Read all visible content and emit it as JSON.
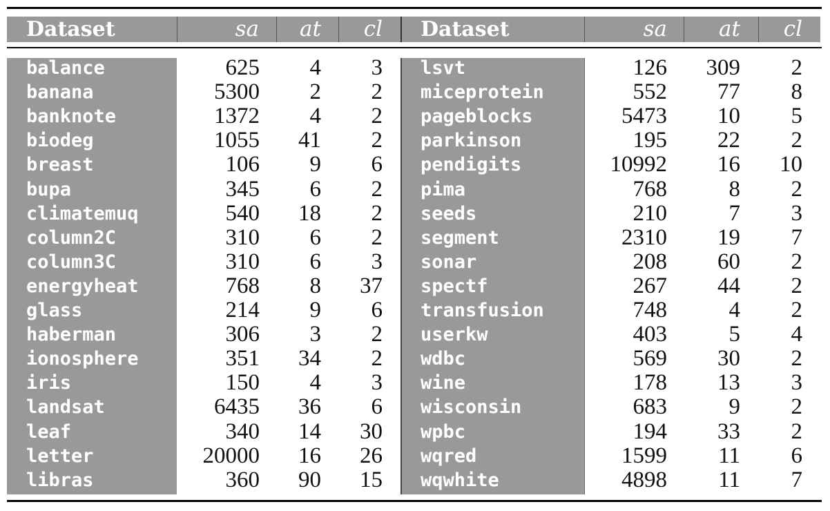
{
  "header": {
    "dataset": "Dataset",
    "sa": "sa",
    "at": "at",
    "cl": "cl"
  },
  "left_rows": [
    {
      "name": "balance",
      "sa": "625",
      "at": "4",
      "cl": "3"
    },
    {
      "name": "banana",
      "sa": "5300",
      "at": "2",
      "cl": "2"
    },
    {
      "name": "banknote",
      "sa": "1372",
      "at": "4",
      "cl": "2"
    },
    {
      "name": "biodeg",
      "sa": "1055",
      "at": "41",
      "cl": "2"
    },
    {
      "name": "breast",
      "sa": "106",
      "at": "9",
      "cl": "6"
    },
    {
      "name": "bupa",
      "sa": "345",
      "at": "6",
      "cl": "2"
    },
    {
      "name": "climatemuq",
      "sa": "540",
      "at": "18",
      "cl": "2"
    },
    {
      "name": "column2C",
      "sa": "310",
      "at": "6",
      "cl": "2"
    },
    {
      "name": "column3C",
      "sa": "310",
      "at": "6",
      "cl": "3"
    },
    {
      "name": "energyheat",
      "sa": "768",
      "at": "8",
      "cl": "37"
    },
    {
      "name": "glass",
      "sa": "214",
      "at": "9",
      "cl": "6"
    },
    {
      "name": "haberman",
      "sa": "306",
      "at": "3",
      "cl": "2"
    },
    {
      "name": "ionosphere",
      "sa": "351",
      "at": "34",
      "cl": "2"
    },
    {
      "name": "iris",
      "sa": "150",
      "at": "4",
      "cl": "3"
    },
    {
      "name": "landsat",
      "sa": "6435",
      "at": "36",
      "cl": "6"
    },
    {
      "name": "leaf",
      "sa": "340",
      "at": "14",
      "cl": "30"
    },
    {
      "name": "letter",
      "sa": "20000",
      "at": "16",
      "cl": "26"
    },
    {
      "name": "libras",
      "sa": "360",
      "at": "90",
      "cl": "15"
    }
  ],
  "right_rows": [
    {
      "name": "lsvt",
      "sa": "126",
      "at": "309",
      "cl": "2"
    },
    {
      "name": "miceprotein",
      "sa": "552",
      "at": "77",
      "cl": "8"
    },
    {
      "name": "pageblocks",
      "sa": "5473",
      "at": "10",
      "cl": "5"
    },
    {
      "name": "parkinson",
      "sa": "195",
      "at": "22",
      "cl": "2"
    },
    {
      "name": "pendigits",
      "sa": "10992",
      "at": "16",
      "cl": "10"
    },
    {
      "name": "pima",
      "sa": "768",
      "at": "8",
      "cl": "2"
    },
    {
      "name": "seeds",
      "sa": "210",
      "at": "7",
      "cl": "3"
    },
    {
      "name": "segment",
      "sa": "2310",
      "at": "19",
      "cl": "7"
    },
    {
      "name": "sonar",
      "sa": "208",
      "at": "60",
      "cl": "2"
    },
    {
      "name": "spectf",
      "sa": "267",
      "at": "44",
      "cl": "2"
    },
    {
      "name": "transfusion",
      "sa": "748",
      "at": "4",
      "cl": "2"
    },
    {
      "name": "userkw",
      "sa": "403",
      "at": "5",
      "cl": "4"
    },
    {
      "name": "wdbc",
      "sa": "569",
      "at": "30",
      "cl": "2"
    },
    {
      "name": "wine",
      "sa": "178",
      "at": "13",
      "cl": "3"
    },
    {
      "name": "wisconsin",
      "sa": "683",
      "at": "9",
      "cl": "2"
    },
    {
      "name": "wpbc",
      "sa": "194",
      "at": "33",
      "cl": "2"
    },
    {
      "name": "wqred",
      "sa": "1599",
      "at": "11",
      "cl": "6"
    },
    {
      "name": "wqwhite",
      "sa": "4898",
      "at": "11",
      "cl": "7"
    }
  ]
}
